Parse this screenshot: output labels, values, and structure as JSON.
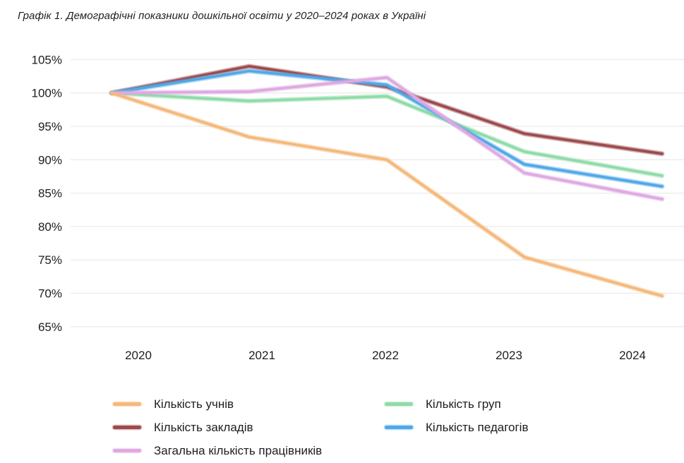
{
  "title": "Графік 1. Демографічні показники дошкільної освіти у 2020–2024 роках в Україні",
  "chart_data": {
    "type": "line",
    "x": [
      2020,
      2021,
      2022,
      2023,
      2024
    ],
    "xticks": [
      "2020",
      "2021",
      "2022",
      "2023",
      "2024"
    ],
    "ytick_values": [
      105,
      100,
      95,
      90,
      85,
      80,
      75,
      70,
      65
    ],
    "ytick_suffix": "%",
    "ylim": [
      65,
      105
    ],
    "grid": true,
    "legend_position": "bottom",
    "series": [
      {
        "name": "Кількість учнів",
        "color": "#f5b87b",
        "values": [
          100,
          93.4,
          90.0,
          75.4,
          69.6
        ]
      },
      {
        "name": "Кількість закладів",
        "color": "#9c4a4c",
        "values": [
          100,
          104.0,
          100.9,
          93.9,
          90.9
        ]
      },
      {
        "name": "Загальна кількість працівників",
        "color": "#dea9e2",
        "values": [
          100,
          100.2,
          102.3,
          88.0,
          84.1
        ]
      },
      {
        "name": "Кількість груп",
        "color": "#8edba9",
        "values": [
          100,
          98.8,
          99.5,
          91.2,
          87.6
        ]
      },
      {
        "name": "Кількість педагогів",
        "color": "#4fa8e8",
        "values": [
          100,
          103.3,
          101.2,
          89.3,
          86.0
        ]
      }
    ]
  },
  "legend": {
    "columns": [
      [
        0,
        1,
        2
      ],
      [
        3,
        4
      ]
    ]
  },
  "colors": {
    "gridline": "#ebebeb",
    "tick_text": "#1d1d1f",
    "title_text": "#1f1f1f"
  }
}
